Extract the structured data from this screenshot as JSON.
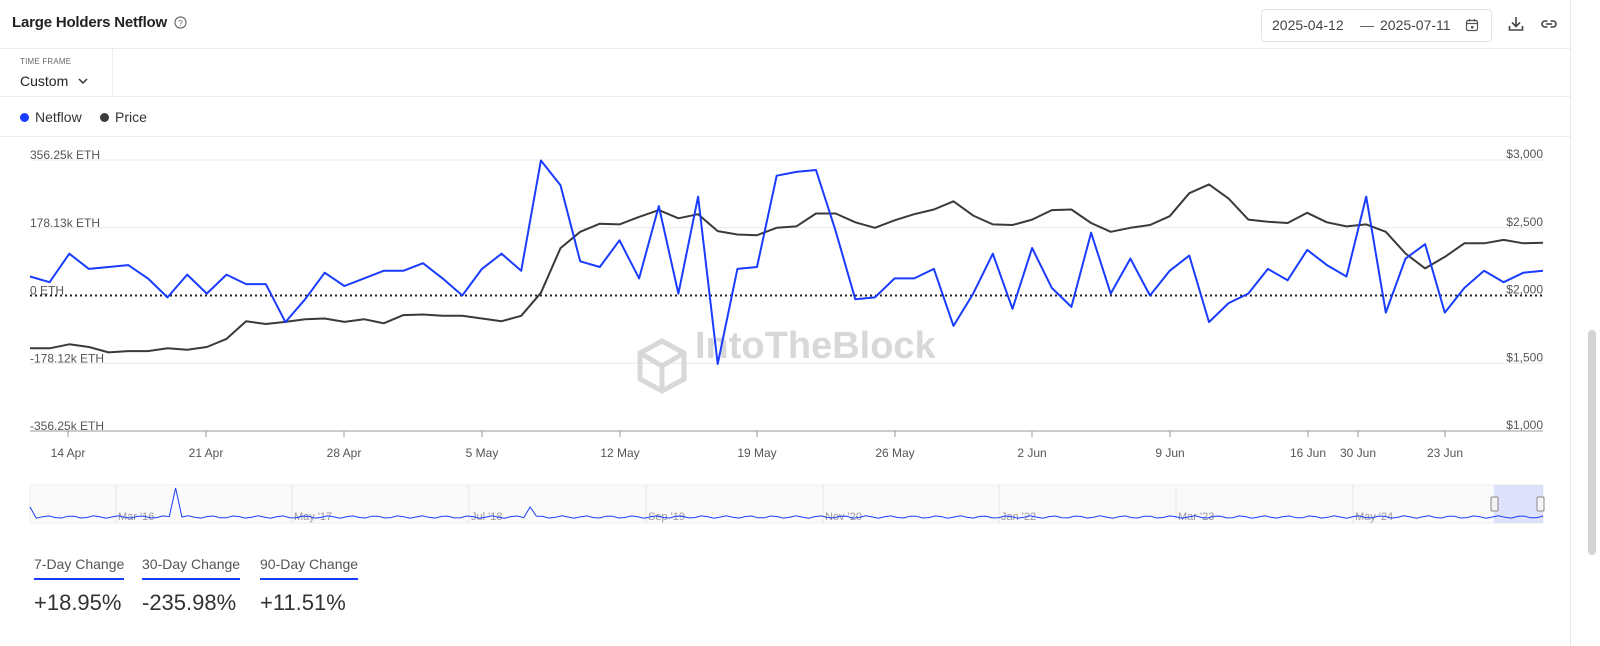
{
  "header": {
    "title": "Large Holders Netflow",
    "date_start": "2025-04-12",
    "date_sep": "—",
    "date_end": "2025-07-11"
  },
  "timeframe": {
    "label": "TIME FRAME",
    "value": "Custom"
  },
  "legend": [
    {
      "label": "Netflow",
      "color": "#1a3cff"
    },
    {
      "label": "Price",
      "color": "#3a3a3a"
    }
  ],
  "chart_data": {
    "type": "line",
    "title": "",
    "x_tick_labels": [
      "14 Apr",
      "21 Apr",
      "28 Apr",
      "5 May",
      "12 May",
      "19 May",
      "26 May",
      "2 Jun",
      "9 Jun",
      "16 Jun",
      "30 Jun",
      "23 Jun"
    ],
    "y_left_ticks": [
      "356.25k ETH",
      "178.13k ETH",
      "0 ETH",
      "-178.12k ETH",
      "-356.25k ETH"
    ],
    "y_left_range": [
      -356.25,
      356.25
    ],
    "y_left_unit": "k ETH",
    "y_right_ticks": [
      "$3,000",
      "$2,500",
      "$2,000",
      "$1,500",
      "$1,000"
    ],
    "y_right_range": [
      1000,
      3000
    ],
    "series": [
      {
        "name": "Netflow",
        "color": "#1a3cff",
        "axis": "left",
        "values": [
          50,
          35,
          110,
          70,
          75,
          80,
          45,
          -5,
          55,
          5,
          55,
          30,
          30,
          -70,
          -10,
          60,
          25,
          45,
          65,
          65,
          85,
          45,
          0,
          70,
          110,
          65,
          355,
          290,
          90,
          75,
          145,
          45,
          235,
          5,
          260,
          -180,
          70,
          75,
          315,
          325,
          330,
          170,
          -10,
          -5,
          45,
          45,
          70,
          -80,
          5,
          110,
          -35,
          125,
          20,
          -30,
          165,
          5,
          97,
          0,
          65,
          105,
          -70,
          -20,
          5,
          70,
          40,
          120,
          80,
          50,
          260,
          -45,
          97,
          135,
          -45,
          20,
          65,
          35,
          60,
          65
        ]
      },
      {
        "name": "Price",
        "color": "#3a3a3a",
        "axis": "right",
        "values": [
          1610,
          1610,
          1640,
          1620,
          1580,
          1590,
          1590,
          1610,
          1600,
          1620,
          1680,
          1810,
          1790,
          1805,
          1825,
          1830,
          1805,
          1825,
          1795,
          1855,
          1860,
          1850,
          1850,
          1830,
          1810,
          1850,
          2020,
          2350,
          2470,
          2530,
          2525,
          2580,
          2630,
          2570,
          2600,
          2475,
          2450,
          2445,
          2500,
          2510,
          2605,
          2605,
          2540,
          2500,
          2555,
          2600,
          2635,
          2695,
          2590,
          2525,
          2520,
          2560,
          2630,
          2635,
          2535,
          2470,
          2500,
          2520,
          2585,
          2755,
          2820,
          2715,
          2560,
          2545,
          2535,
          2610,
          2540,
          2510,
          2525,
          2470,
          2310,
          2200,
          2285,
          2385,
          2385,
          2410,
          2385,
          2390
        ]
      }
    ],
    "zero_line": true,
    "grid": true,
    "navigator_labels": [
      "Mar '16",
      "May '17",
      "Jul '18",
      "Sep '19",
      "Nov '20",
      "Jan '22",
      "Mar '23",
      "May '24"
    ],
    "watermark": "IntoTheBlock"
  },
  "changes": [
    {
      "label": "7-Day Change",
      "value": "+18.95%"
    },
    {
      "label": "30-Day Change",
      "value": "-235.98%"
    },
    {
      "label": "90-Day Change",
      "value": "+11.51%"
    }
  ]
}
